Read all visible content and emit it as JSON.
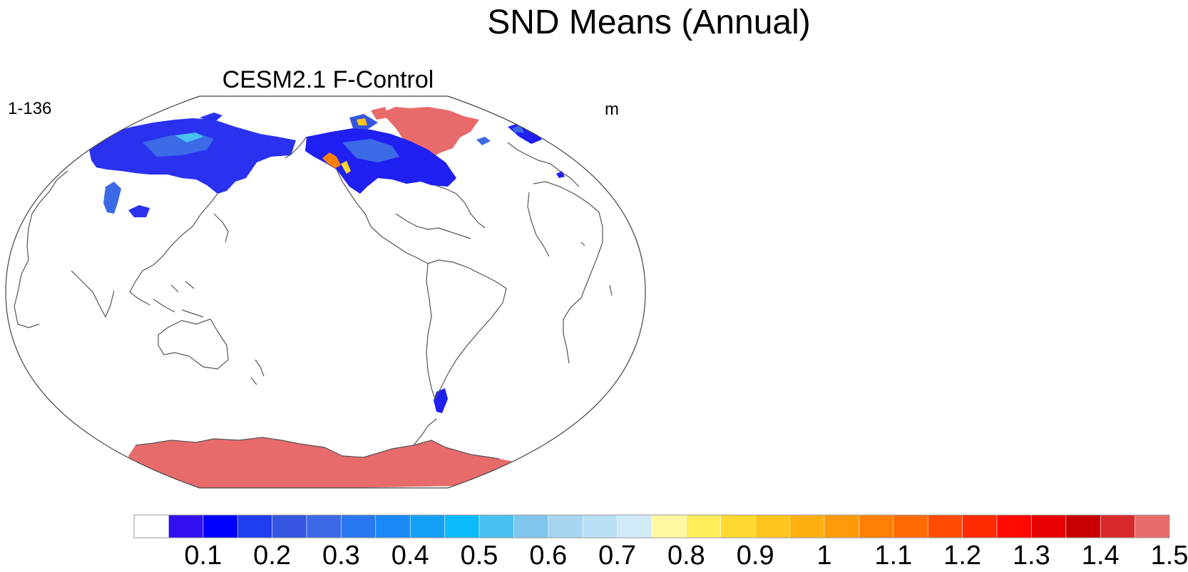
{
  "title": "SND Means (Annual)",
  "panel": {
    "subtitle": "CESM2.1 F-Control",
    "left_label": "1-136",
    "right_label": "m"
  },
  "colors": {
    "coastline": "#555555",
    "boundary": "#444444",
    "ice_sheet": "#e86b6b"
  },
  "colorbar": {
    "ticks": [
      "0.1",
      "0.2",
      "0.3",
      "0.4",
      "0.5",
      "0.6",
      "0.7",
      "0.8",
      "0.9",
      "1",
      "1.1",
      "1.2",
      "1.3",
      "1.4",
      "1.5"
    ],
    "colors": [
      "#ffffff",
      "#3010f0",
      "#0000ff",
      "#1f3ef0",
      "#3456e0",
      "#3c6ae6",
      "#2a78f0",
      "#1a88f5",
      "#12a0f5",
      "#0cbcfa",
      "#48c0f0",
      "#7ec6ee",
      "#a6d6f2",
      "#b8e0f4",
      "#d0eaf8",
      "#fff8a0",
      "#ffec5a",
      "#ffd830",
      "#ffc41e",
      "#ffb010",
      "#ff9a08",
      "#ff8004",
      "#ff6a02",
      "#ff4a00",
      "#ff2a00",
      "#ff0a00",
      "#e60000",
      "#c80000",
      "#d82a2a",
      "#e86b6b"
    ]
  }
}
